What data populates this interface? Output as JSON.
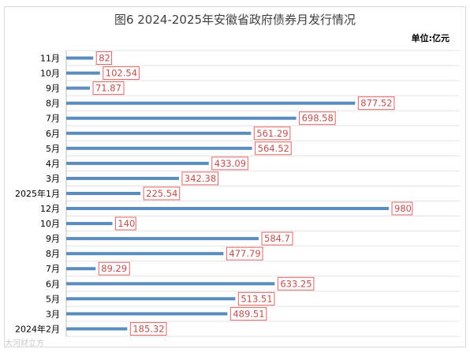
{
  "chart_data": {
    "type": "bar",
    "orientation": "horizontal",
    "title": "图6 2024-2025年安徽省政府债券月发行情况",
    "unit_label": "单位:亿元",
    "categories": [
      "11月",
      "10月",
      "9月",
      "8月",
      "7月",
      "6月",
      "5月",
      "4月",
      "3月",
      "2025年1月",
      "12月",
      "10月",
      "9月",
      "8月",
      "7月",
      "6月",
      "5月",
      "3月",
      "2024年2月"
    ],
    "values": [
      82,
      102.54,
      71.87,
      877.52,
      698.58,
      561.29,
      564.52,
      433.09,
      342.38,
      225.54,
      980,
      140,
      584.7,
      477.79,
      89.29,
      633.25,
      513.51,
      489.51,
      185.32
    ],
    "data_labels": [
      "82",
      "102.54",
      "71.87",
      "877.52",
      "698.58",
      "561.29",
      "564.52",
      "433.09",
      "342.38",
      "225.54",
      "980",
      "140",
      "584.7",
      "477.79",
      "89.29",
      "633.25",
      "513.51",
      "489.51",
      "185.32"
    ],
    "grid": true,
    "legend": "none",
    "bar_color": "#5b8cc0",
    "label_color": "#c0504d",
    "label_border_color": "#e06666",
    "grid_color": "#e3e3e3"
  },
  "watermark": "大河财立方"
}
